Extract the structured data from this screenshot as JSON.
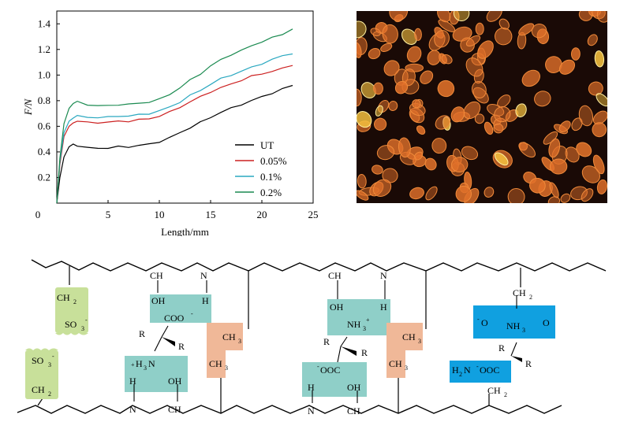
{
  "chart_data": {
    "type": "line",
    "xlabel": "Length/mm",
    "ylabel": "F/N",
    "xlim": [
      0,
      25
    ],
    "ylim": [
      0,
      1.5
    ],
    "xticks": [
      0,
      5,
      10,
      15,
      20,
      25
    ],
    "yticks": [
      0.2,
      0.4,
      0.6,
      0.8,
      1.0,
      1.2,
      1.4
    ],
    "ytick_labels": [
      "0.2",
      "0.4",
      "0.6",
      "0.8",
      "1.0",
      "1.2",
      "1.4"
    ],
    "legend_placement": "bottom-right",
    "grid": false,
    "series": [
      {
        "name": "UT",
        "color": "#000000",
        "x": [
          0,
          0.3,
          0.7,
          1.2,
          1.6,
          2,
          3,
          4,
          5,
          6,
          7,
          8,
          9,
          10,
          11,
          12,
          13,
          14,
          15,
          16,
          17,
          18,
          19,
          20,
          21,
          22,
          23
        ],
        "y": [
          0,
          0.2,
          0.36,
          0.44,
          0.46,
          0.45,
          0.43,
          0.43,
          0.43,
          0.44,
          0.44,
          0.45,
          0.46,
          0.48,
          0.51,
          0.55,
          0.59,
          0.63,
          0.67,
          0.71,
          0.74,
          0.77,
          0.8,
          0.83,
          0.86,
          0.89,
          0.92
        ]
      },
      {
        "name": "0.05%",
        "color": "#cc2020",
        "x": [
          0,
          0.3,
          0.7,
          1.2,
          1.6,
          2,
          3,
          4,
          5,
          6,
          7,
          8,
          9,
          10,
          11,
          12,
          13,
          14,
          15,
          16,
          17,
          18,
          19,
          20,
          21,
          22,
          23
        ],
        "y": [
          0,
          0.3,
          0.52,
          0.6,
          0.63,
          0.64,
          0.63,
          0.63,
          0.63,
          0.64,
          0.64,
          0.65,
          0.66,
          0.68,
          0.71,
          0.75,
          0.79,
          0.83,
          0.87,
          0.9,
          0.93,
          0.96,
          0.99,
          1.01,
          1.03,
          1.05,
          1.08
        ]
      },
      {
        "name": "0.1%",
        "color": "#2aa8c0",
        "x": [
          0,
          0.3,
          0.7,
          1.2,
          1.6,
          2,
          3,
          4,
          5,
          6,
          7,
          8,
          9,
          10,
          11,
          12,
          13,
          14,
          15,
          16,
          17,
          18,
          19,
          20,
          21,
          22,
          23
        ],
        "y": [
          0,
          0.32,
          0.55,
          0.64,
          0.67,
          0.68,
          0.67,
          0.67,
          0.67,
          0.68,
          0.68,
          0.69,
          0.7,
          0.72,
          0.75,
          0.79,
          0.84,
          0.88,
          0.93,
          0.97,
          1.0,
          1.03,
          1.06,
          1.09,
          1.12,
          1.15,
          1.17
        ]
      },
      {
        "name": "0.2%",
        "color": "#1a8a50",
        "x": [
          0,
          0.3,
          0.7,
          1.2,
          1.6,
          2,
          3,
          4,
          5,
          6,
          7,
          8,
          9,
          10,
          11,
          12,
          13,
          14,
          15,
          16,
          17,
          18,
          19,
          20,
          21,
          22,
          23
        ],
        "y": [
          0,
          0.35,
          0.62,
          0.74,
          0.78,
          0.79,
          0.77,
          0.76,
          0.76,
          0.77,
          0.77,
          0.78,
          0.79,
          0.81,
          0.85,
          0.9,
          0.96,
          1.01,
          1.07,
          1.12,
          1.16,
          1.19,
          1.23,
          1.26,
          1.29,
          1.32,
          1.36
        ]
      }
    ]
  },
  "micrograph": {
    "background": "#1a0a06",
    "cell_color": "#e0702a",
    "cell_bright_color": "#f5c040"
  },
  "schematic": {
    "colors": {
      "sulfonate": "#c8e09a",
      "amine_box": "#8fcfc8",
      "methyl": "#f0b898",
      "blue_box": "#10a0e0"
    },
    "labels": {
      "ch": "CH",
      "n": "N",
      "oh": "OH",
      "h": "H",
      "ch2": "CH",
      "ch3": "CH",
      "sub2": "2",
      "sub3": "3",
      "so3": "SO",
      "minus": "-",
      "plus": "+",
      "coo": "COO",
      "ooc": "OOC",
      "nh3": "NH",
      "h3n": "H",
      "r": "R",
      "h2n": "H",
      "o_minus": "O",
      "o": "O",
      "c_n": "N"
    }
  }
}
